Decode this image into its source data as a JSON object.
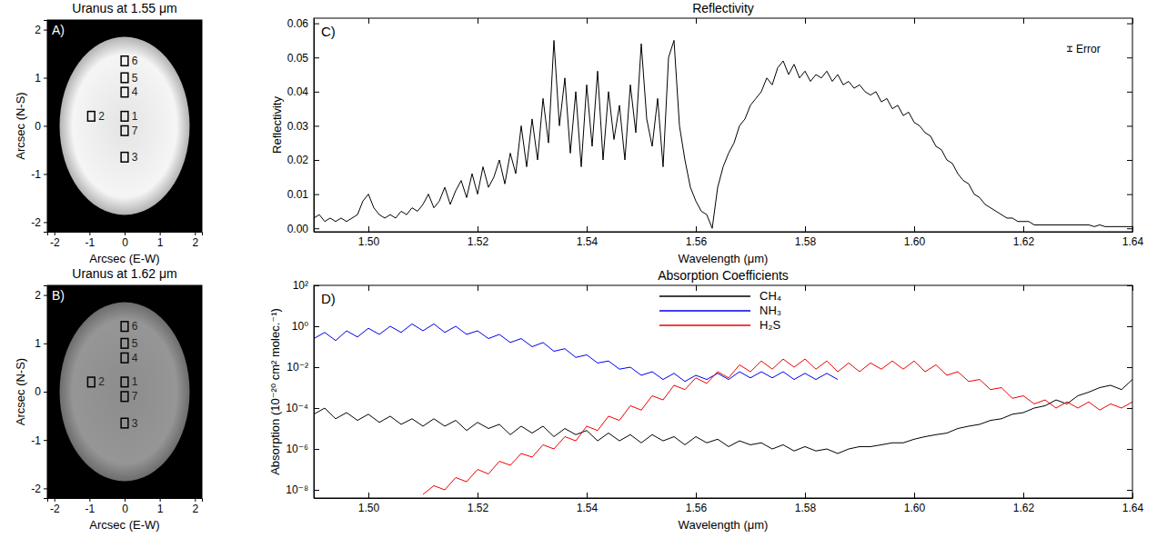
{
  "chart_data": [
    {
      "type": "image",
      "title": "Uranus at 1.55 μm",
      "panel_label": "A)",
      "xlabel": "Arcsec (E-W)",
      "ylabel": "Arcsec (N-S)",
      "xlim": [
        -2.2,
        2.2
      ],
      "ylim": [
        -2.2,
        2.2
      ],
      "xticks": [
        -2,
        -1,
        0,
        1,
        2
      ],
      "yticks": [
        -2,
        -1,
        0,
        1,
        2
      ],
      "color": "#e4e4e4",
      "disk": {
        "x": 0,
        "y": 0,
        "radius": 1.85
      },
      "box_size": 0.2,
      "boxes": [
        {
          "label": "6",
          "x": 0,
          "y": 1.35
        },
        {
          "label": "5",
          "x": 0,
          "y": 1.0
        },
        {
          "label": "4",
          "x": 0,
          "y": 0.7
        },
        {
          "label": "2",
          "x": -0.95,
          "y": 0.2
        },
        {
          "label": "1",
          "x": 0,
          "y": 0.2
        },
        {
          "label": "7",
          "x": 0,
          "y": -0.1
        },
        {
          "label": "3",
          "x": 0,
          "y": -0.65
        }
      ]
    },
    {
      "type": "image",
      "title": "Uranus at 1.62 μm",
      "panel_label": "B)",
      "xlabel": "Arcsec (E-W)",
      "ylabel": "Arcsec (N-S)",
      "xlim": [
        -2.2,
        2.2
      ],
      "ylim": [
        -2.2,
        2.2
      ],
      "xticks": [
        -2,
        -1,
        0,
        1,
        2
      ],
      "yticks": [
        -2,
        -1,
        0,
        1,
        2
      ],
      "color": "#8c8c8c",
      "disk": {
        "x": 0,
        "y": 0,
        "radius": 1.85
      },
      "box_size": 0.2,
      "boxes": [
        {
          "label": "6",
          "x": 0,
          "y": 1.35
        },
        {
          "label": "5",
          "x": 0,
          "y": 1.0
        },
        {
          "label": "4",
          "x": 0,
          "y": 0.7
        },
        {
          "label": "2",
          "x": -0.95,
          "y": 0.2
        },
        {
          "label": "1",
          "x": 0,
          "y": 0.2
        },
        {
          "label": "7",
          "x": 0,
          "y": -0.1
        },
        {
          "label": "3",
          "x": 0,
          "y": -0.65
        }
      ]
    },
    {
      "type": "line",
      "title": "Reflectivity",
      "panel_label": "C)",
      "xlabel": "Wavelength (μm)",
      "ylabel": "Reflectivity",
      "xlim": [
        1.49,
        1.64
      ],
      "ylim": [
        -0.001,
        0.0615
      ],
      "xticks": [
        {
          "value": 1.5,
          "label": "1.50"
        },
        1.52,
        1.54,
        1.56,
        1.58,
        {
          "value": 1.6,
          "label": "1.60"
        },
        1.62,
        1.64
      ],
      "yticks": [
        {
          "value": 0,
          "label": "0.00"
        },
        0.01,
        0.02,
        0.03,
        0.04,
        0.05,
        0.06
      ],
      "color": "#000000",
      "x": [
        1.49,
        1.491,
        1.492,
        1.493,
        1.494,
        1.495,
        1.496,
        1.497,
        1.498,
        1.499,
        1.5,
        1.501,
        1.502,
        1.503,
        1.504,
        1.505,
        1.506,
        1.507,
        1.508,
        1.509,
        1.51,
        1.511,
        1.512,
        1.513,
        1.514,
        1.515,
        1.516,
        1.517,
        1.518,
        1.519,
        1.52,
        1.521,
        1.522,
        1.523,
        1.524,
        1.525,
        1.526,
        1.527,
        1.528,
        1.529,
        1.53,
        1.531,
        1.532,
        1.533,
        1.534,
        1.535,
        1.536,
        1.537,
        1.538,
        1.539,
        1.54,
        1.541,
        1.542,
        1.543,
        1.544,
        1.545,
        1.546,
        1.547,
        1.548,
        1.549,
        1.55,
        1.551,
        1.552,
        1.553,
        1.554,
        1.555,
        1.556,
        1.557,
        1.558,
        1.559,
        1.56,
        1.561,
        1.562,
        1.563,
        1.564,
        1.565,
        1.566,
        1.567,
        1.568,
        1.569,
        1.57,
        1.571,
        1.572,
        1.573,
        1.574,
        1.575,
        1.576,
        1.577,
        1.578,
        1.579,
        1.58,
        1.581,
        1.582,
        1.583,
        1.584,
        1.585,
        1.586,
        1.587,
        1.588,
        1.589,
        1.59,
        1.591,
        1.592,
        1.593,
        1.594,
        1.595,
        1.596,
        1.597,
        1.598,
        1.599,
        1.6,
        1.601,
        1.602,
        1.603,
        1.604,
        1.605,
        1.606,
        1.607,
        1.608,
        1.609,
        1.61,
        1.611,
        1.612,
        1.613,
        1.614,
        1.615,
        1.616,
        1.617,
        1.618,
        1.619,
        1.62,
        1.621,
        1.622,
        1.623,
        1.624,
        1.625,
        1.626,
        1.627,
        1.628,
        1.629,
        1.63,
        1.631,
        1.632,
        1.633,
        1.634,
        1.635,
        1.636,
        1.637,
        1.638,
        1.639,
        1.64
      ],
      "values": [
        0.003,
        0.004,
        0.002,
        0.003,
        0.002,
        0.003,
        0.002,
        0.003,
        0.004,
        0.008,
        0.01,
        0.006,
        0.004,
        0.003,
        0.004,
        0.003,
        0.005,
        0.004,
        0.006,
        0.005,
        0.007,
        0.01,
        0.006,
        0.008,
        0.012,
        0.007,
        0.011,
        0.014,
        0.009,
        0.016,
        0.01,
        0.018,
        0.012,
        0.015,
        0.02,
        0.013,
        0.022,
        0.016,
        0.03,
        0.018,
        0.032,
        0.02,
        0.038,
        0.025,
        0.055,
        0.03,
        0.044,
        0.022,
        0.04,
        0.018,
        0.042,
        0.024,
        0.046,
        0.02,
        0.04,
        0.026,
        0.036,
        0.02,
        0.042,
        0.028,
        0.054,
        0.032,
        0.024,
        0.038,
        0.018,
        0.05,
        0.055,
        0.03,
        0.02,
        0.012,
        0.008,
        0.005,
        0.004,
        0,
        0.012,
        0.018,
        0.022,
        0.025,
        0.03,
        0.032,
        0.036,
        0.038,
        0.04,
        0.044,
        0.042,
        0.047,
        0.049,
        0.045,
        0.048,
        0.044,
        0.046,
        0.043,
        0.045,
        0.044,
        0.046,
        0.043,
        0.045,
        0.042,
        0.043,
        0.041,
        0.042,
        0.04,
        0.039,
        0.04,
        0.037,
        0.038,
        0.035,
        0.036,
        0.033,
        0.034,
        0.031,
        0.03,
        0.028,
        0.027,
        0.024,
        0.023,
        0.02,
        0.019,
        0.016,
        0.014,
        0.013,
        0.01,
        0.009,
        0.007,
        0.006,
        0.005,
        0.004,
        0.003,
        0.003,
        0.002,
        0.002,
        0.002,
        0.001,
        0.001,
        0.001,
        0.001,
        0.001,
        0.001,
        0.001,
        0.001,
        0.001,
        0.001,
        0.001,
        0.0005,
        0.001,
        0.0005,
        0.0005,
        0.0005,
        0.0005,
        0.0005,
        0.0005
      ],
      "annotations": [
        {
          "text": "Error",
          "x": 1.6285,
          "y": 0.0525,
          "error": 0.0007
        }
      ]
    },
    {
      "type": "line",
      "log": "y",
      "title": "Absorption Coefficients",
      "panel_label": "D)",
      "xlabel": "Wavelength (μm)",
      "ylabel": "Absorption (10⁻²⁰ cm² molec.⁻¹)",
      "xlim": [
        1.49,
        1.64
      ],
      "ylim": [
        4e-09,
        100
      ],
      "xticks": [
        {
          "value": 1.5,
          "label": "1.50"
        },
        1.52,
        1.54,
        1.56,
        1.58,
        {
          "value": 1.6,
          "label": "1.60"
        },
        1.62,
        1.64
      ],
      "yticks": [
        {
          "value": 1e-08,
          "label": "10⁻⁸"
        },
        {
          "value": 1e-06,
          "label": "10⁻⁶"
        },
        {
          "value": 0.0001,
          "label": "10⁻⁴"
        },
        {
          "value": 0.01,
          "label": "10⁻²"
        },
        {
          "value": 1,
          "label": "10⁰"
        },
        {
          "value": 100,
          "label": "10²"
        }
      ],
      "legend": "top",
      "x": [
        1.49,
        1.492,
        1.494,
        1.496,
        1.498,
        1.5,
        1.502,
        1.504,
        1.506,
        1.508,
        1.51,
        1.512,
        1.514,
        1.516,
        1.518,
        1.52,
        1.522,
        1.524,
        1.526,
        1.528,
        1.53,
        1.532,
        1.534,
        1.536,
        1.538,
        1.54,
        1.542,
        1.544,
        1.546,
        1.548,
        1.55,
        1.552,
        1.554,
        1.556,
        1.558,
        1.56,
        1.562,
        1.564,
        1.566,
        1.568,
        1.57,
        1.572,
        1.574,
        1.576,
        1.578,
        1.58,
        1.582,
        1.584,
        1.586,
        1.588,
        1.59,
        1.592,
        1.594,
        1.596,
        1.598,
        1.6,
        1.602,
        1.604,
        1.606,
        1.608,
        1.61,
        1.612,
        1.614,
        1.616,
        1.618,
        1.62,
        1.622,
        1.624,
        1.626,
        1.628,
        1.63,
        1.632,
        1.634,
        1.636,
        1.638,
        1.64
      ],
      "series": [
        {
          "name": "CH₄",
          "color": "#000000",
          "values": [
            5e-05,
            0.0001,
            3e-05,
            6e-05,
            2.5e-05,
            5e-05,
            2e-05,
            4e-05,
            1.6e-05,
            3e-05,
            1.3e-05,
            3e-05,
            1.3e-05,
            2.5e-05,
            8e-06,
            2e-05,
            1e-05,
            1.6e-05,
            5e-06,
            1.3e-05,
            6e-06,
            1.3e-05,
            4e-06,
            1e-05,
            5e-06,
            8e-06,
            2.5e-06,
            6e-06,
            2.5e-06,
            5e-06,
            2e-06,
            5e-06,
            2.5e-06,
            4e-06,
            1.6e-06,
            4e-06,
            2e-06,
            3e-06,
            1.3e-06,
            2.5e-06,
            1.6e-06,
            2e-06,
            1e-06,
            1.6e-06,
            8e-07,
            1.3e-06,
            8e-07,
            1e-06,
            6e-07,
            1e-06,
            1.3e-06,
            1.3e-06,
            1.6e-06,
            2e-06,
            2e-06,
            3e-06,
            4e-06,
            5e-06,
            6e-06,
            1e-05,
            1.3e-05,
            1.6e-05,
            2.5e-05,
            3e-05,
            5e-05,
            6e-05,
            0.0001,
            0.00013,
            0.00025,
            0.00016,
            0.0004,
            0.0006,
            0.001,
            0.0013,
            0.0008,
            0.0025
          ]
        },
        {
          "name": "NH₃",
          "color": "#0000ee",
          "values": [
            0.25,
            0.5,
            0.2,
            0.6,
            0.3,
            0.8,
            0.4,
            1,
            0.5,
            1.3,
            0.6,
            1.3,
            0.5,
            1,
            0.4,
            0.6,
            0.25,
            0.4,
            0.16,
            0.25,
            0.1,
            0.16,
            0.06,
            0.08,
            0.03,
            0.04,
            0.016,
            0.02,
            0.008,
            0.01,
            0.004,
            0.006,
            0.0025,
            0.005,
            0.002,
            0.004,
            0.0025,
            0.005,
            0.0025,
            0.006,
            0.003,
            0.006,
            0.003,
            0.006,
            0.0025,
            0.005,
            0.0025,
            0.005,
            0.0025,
            null,
            null,
            null,
            null,
            null,
            null,
            null,
            null,
            null,
            null,
            null,
            null,
            null,
            null,
            null,
            null,
            null,
            null,
            null,
            null,
            null,
            null,
            null,
            null,
            null,
            null,
            null
          ]
        },
        {
          "name": "H₂S",
          "color": "#ee0000",
          "values": [
            null,
            null,
            null,
            null,
            null,
            null,
            null,
            null,
            null,
            null,
            6e-09,
            1.6e-08,
            1e-08,
            4e-08,
            2.5e-08,
            1e-07,
            6e-08,
            2.5e-07,
            1.6e-07,
            6e-07,
            4e-07,
            1.6e-06,
            1e-06,
            4e-06,
            2.5e-06,
            1.3e-05,
            8e-06,
            4e-05,
            2.5e-05,
            0.00013,
            8e-05,
            0.0004,
            0.00025,
            0.0013,
            0.0008,
            0.003,
            0.0016,
            0.006,
            0.003,
            0.013,
            0.006,
            0.02,
            0.008,
            0.025,
            0.01,
            0.025,
            0.008,
            0.02,
            0.006,
            0.016,
            0.006,
            0.016,
            0.008,
            0.02,
            0.008,
            0.02,
            0.006,
            0.013,
            0.004,
            0.006,
            0.002,
            0.0025,
            0.0008,
            0.001,
            0.0003,
            0.0004,
            0.00016,
            0.00025,
            0.0001,
            0.0002,
            0.0001,
            0.0002,
            8e-05,
            0.00016,
            0.0001,
            0.0002
          ]
        }
      ]
    }
  ]
}
